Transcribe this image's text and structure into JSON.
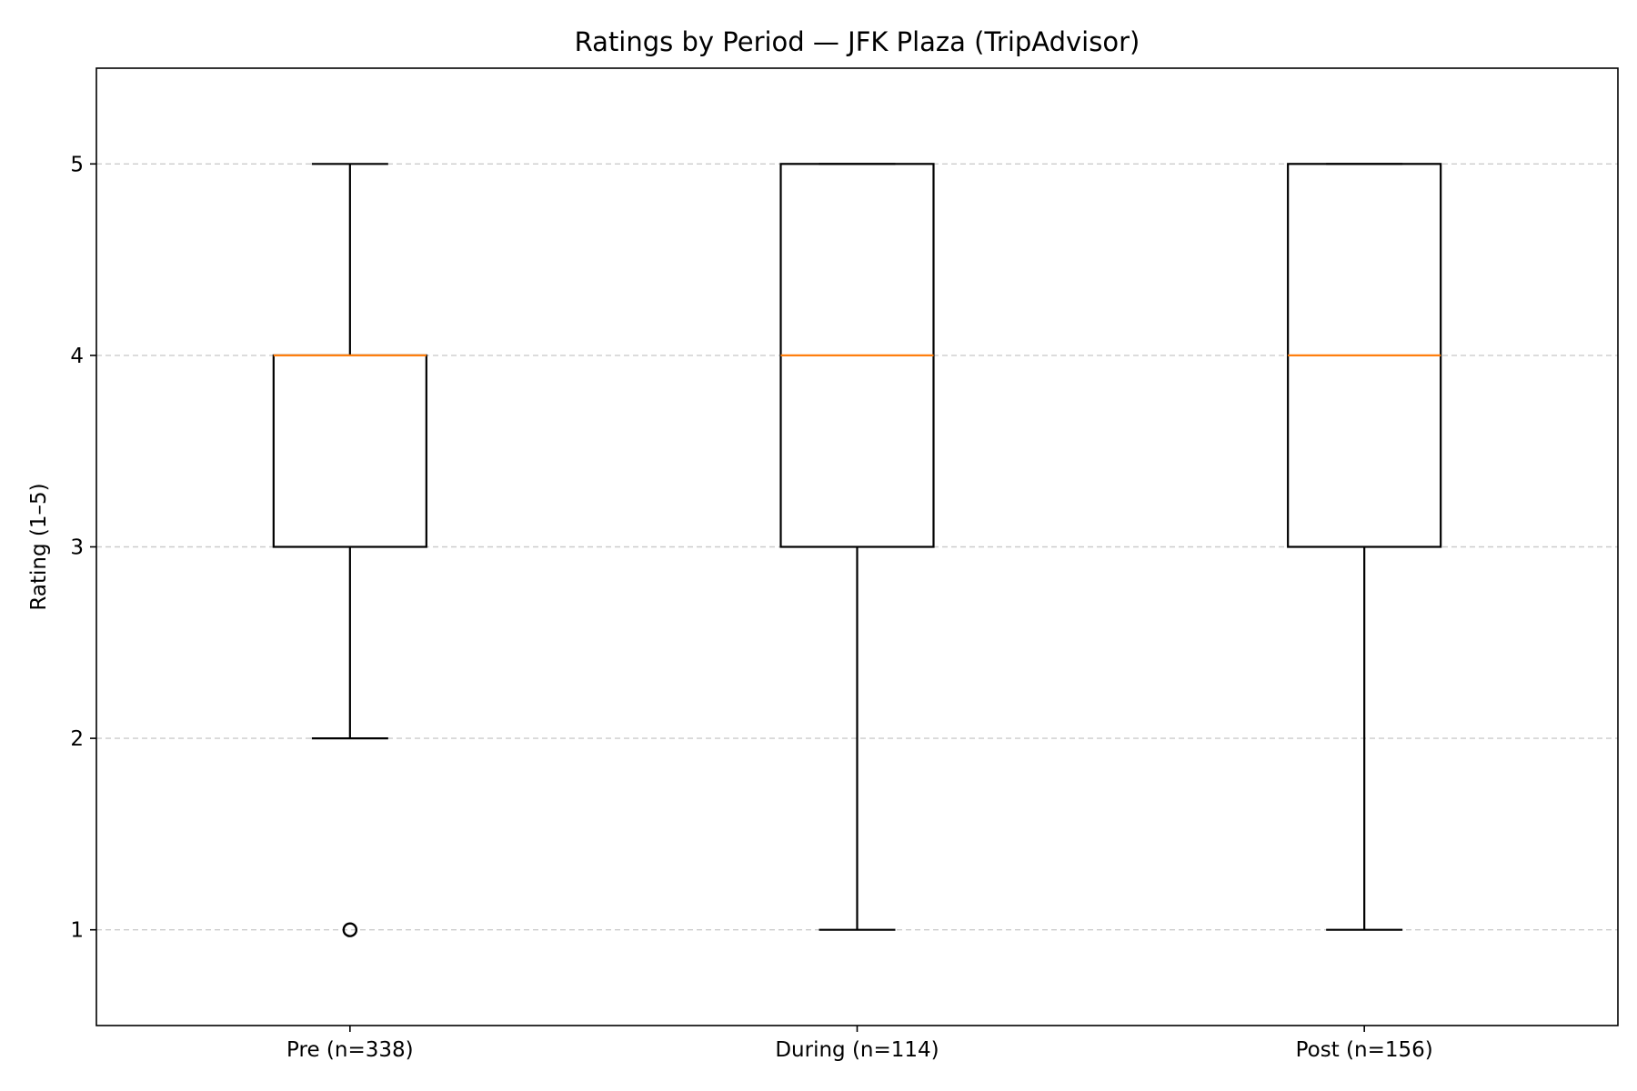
{
  "chart_data": {
    "type": "box",
    "title": "Ratings by Period — JFK Plaza (TripAdvisor)",
    "xlabel": "",
    "ylabel": "Rating (1–5)",
    "ylim": [
      0.5,
      5.5
    ],
    "yticks": [
      1,
      2,
      3,
      4,
      5
    ],
    "grid": {
      "y": true,
      "style": "dashed"
    },
    "colors": {
      "box": "#000000",
      "median": "#ff7f0e",
      "grid": "#cccccc"
    },
    "categories": [
      "Pre (n=338)",
      "During (n=114)",
      "Post (n=156)"
    ],
    "boxes": [
      {
        "label": "Pre (n=338)",
        "whisker_low": 2,
        "q1": 3,
        "median": 4,
        "q3": 4,
        "whisker_high": 5,
        "outliers": [
          1
        ]
      },
      {
        "label": "During (n=114)",
        "whisker_low": 1,
        "q1": 3,
        "median": 4,
        "q3": 5,
        "whisker_high": 5,
        "outliers": []
      },
      {
        "label": "Post (n=156)",
        "whisker_low": 1,
        "q1": 3,
        "median": 4,
        "q3": 5,
        "whisker_high": 5,
        "outliers": []
      }
    ]
  }
}
